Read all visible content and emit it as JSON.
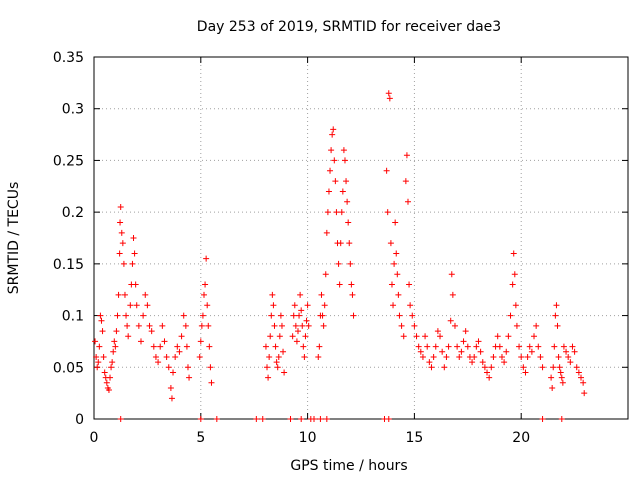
{
  "chart_data": {
    "type": "scatter",
    "title": "Day 253 of 2019, SRMTID for receiver dae3",
    "xlabel": "GPS time / hours",
    "ylabel": "SRMTID / TECUs",
    "xlim": [
      0,
      25
    ],
    "ylim": [
      0,
      0.35
    ],
    "x_ticks": [
      0,
      5,
      10,
      15,
      20
    ],
    "y_ticks": [
      0,
      0.05,
      0.1,
      0.15,
      0.2,
      0.25,
      0.3,
      0.35
    ],
    "y_tick_labels": [
      "0",
      "0.05",
      "0.1",
      "0.15",
      "0.2",
      "0.25",
      "0.3",
      "0.35"
    ],
    "grid": true,
    "marker": "+",
    "color": "#ff0000",
    "series": [
      {
        "name": "SRMTID",
        "points": [
          [
            0.05,
            0.075
          ],
          [
            0.1,
            0.06
          ],
          [
            0.15,
            0.05
          ],
          [
            0.2,
            0.055
          ],
          [
            0.25,
            0.07
          ],
          [
            0.3,
            0.1
          ],
          [
            0.35,
            0.095
          ],
          [
            0.4,
            0.085
          ],
          [
            0.45,
            0.06
          ],
          [
            0.5,
            0.045
          ],
          [
            0.55,
            0.04
          ],
          [
            0.6,
            0.035
          ],
          [
            0.65,
            0.03
          ],
          [
            0.7,
            0.028
          ],
          [
            0.75,
            0.04
          ],
          [
            0.8,
            0.05
          ],
          [
            0.85,
            0.055
          ],
          [
            0.9,
            0.065
          ],
          [
            0.95,
            0.075
          ],
          [
            1.0,
            0.07
          ],
          [
            1.05,
            0.085
          ],
          [
            1.1,
            0.1
          ],
          [
            1.15,
            0.12
          ],
          [
            1.2,
            0.16
          ],
          [
            1.22,
            0.19
          ],
          [
            1.25,
            0.205
          ],
          [
            1.3,
            0.18
          ],
          [
            1.35,
            0.17
          ],
          [
            1.4,
            0.15
          ],
          [
            1.45,
            0.12
          ],
          [
            1.5,
            0.1
          ],
          [
            1.55,
            0.09
          ],
          [
            1.6,
            0.08
          ],
          [
            1.7,
            0.11
          ],
          [
            1.75,
            0.13
          ],
          [
            1.8,
            0.15
          ],
          [
            1.85,
            0.175
          ],
          [
            1.9,
            0.16
          ],
          [
            1.95,
            0.13
          ],
          [
            2.0,
            0.11
          ],
          [
            2.1,
            0.09
          ],
          [
            2.2,
            0.075
          ],
          [
            2.3,
            0.1
          ],
          [
            2.4,
            0.12
          ],
          [
            2.5,
            0.11
          ],
          [
            2.6,
            0.09
          ],
          [
            2.7,
            0.085
          ],
          [
            2.8,
            0.07
          ],
          [
            2.9,
            0.06
          ],
          [
            3.0,
            0.055
          ],
          [
            3.1,
            0.07
          ],
          [
            3.2,
            0.09
          ],
          [
            3.3,
            0.075
          ],
          [
            3.4,
            0.06
          ],
          [
            3.5,
            0.05
          ],
          [
            3.6,
            0.03
          ],
          [
            3.65,
            0.02
          ],
          [
            3.7,
            0.045
          ],
          [
            3.8,
            0.06
          ],
          [
            3.9,
            0.07
          ],
          [
            4.0,
            0.065
          ],
          [
            4.1,
            0.08
          ],
          [
            4.2,
            0.1
          ],
          [
            4.3,
            0.09
          ],
          [
            4.35,
            0.07
          ],
          [
            4.4,
            0.05
          ],
          [
            4.45,
            0.04
          ],
          [
            4.95,
            0.06
          ],
          [
            5.0,
            0.075
          ],
          [
            5.05,
            0.09
          ],
          [
            5.1,
            0.1
          ],
          [
            5.15,
            0.12
          ],
          [
            5.2,
            0.13
          ],
          [
            5.25,
            0.155
          ],
          [
            5.3,
            0.11
          ],
          [
            5.35,
            0.09
          ],
          [
            5.4,
            0.07
          ],
          [
            5.45,
            0.05
          ],
          [
            5.5,
            0.035
          ],
          [
            8.05,
            0.07
          ],
          [
            8.1,
            0.05
          ],
          [
            8.15,
            0.04
          ],
          [
            8.2,
            0.06
          ],
          [
            8.25,
            0.08
          ],
          [
            8.3,
            0.1
          ],
          [
            8.35,
            0.12
          ],
          [
            8.4,
            0.11
          ],
          [
            8.45,
            0.09
          ],
          [
            8.5,
            0.07
          ],
          [
            8.55,
            0.055
          ],
          [
            8.6,
            0.05
          ],
          [
            8.65,
            0.06
          ],
          [
            8.7,
            0.08
          ],
          [
            8.75,
            0.1
          ],
          [
            8.8,
            0.09
          ],
          [
            8.85,
            0.065
          ],
          [
            8.9,
            0.045
          ],
          [
            9.3,
            0.08
          ],
          [
            9.35,
            0.1
          ],
          [
            9.4,
            0.11
          ],
          [
            9.45,
            0.09
          ],
          [
            9.5,
            0.075
          ],
          [
            9.55,
            0.085
          ],
          [
            9.6,
            0.1
          ],
          [
            9.65,
            0.12
          ],
          [
            9.7,
            0.105
          ],
          [
            9.75,
            0.09
          ],
          [
            9.8,
            0.07
          ],
          [
            9.85,
            0.06
          ],
          [
            9.9,
            0.08
          ],
          [
            9.95,
            0.095
          ],
          [
            10.0,
            0.11
          ],
          [
            10.05,
            0.09
          ],
          [
            10.5,
            0.06
          ],
          [
            10.55,
            0.07
          ],
          [
            10.6,
            0.1
          ],
          [
            10.65,
            0.12
          ],
          [
            10.7,
            0.1
          ],
          [
            10.75,
            0.09
          ],
          [
            10.8,
            0.11
          ],
          [
            10.85,
            0.14
          ],
          [
            10.9,
            0.18
          ],
          [
            10.95,
            0.2
          ],
          [
            11.0,
            0.22
          ],
          [
            11.05,
            0.24
          ],
          [
            11.1,
            0.26
          ],
          [
            11.15,
            0.275
          ],
          [
            11.2,
            0.28
          ],
          [
            11.25,
            0.25
          ],
          [
            11.3,
            0.23
          ],
          [
            11.35,
            0.2
          ],
          [
            11.4,
            0.17
          ],
          [
            11.45,
            0.15
          ],
          [
            11.5,
            0.13
          ],
          [
            11.55,
            0.17
          ],
          [
            11.6,
            0.2
          ],
          [
            11.65,
            0.22
          ],
          [
            11.7,
            0.26
          ],
          [
            11.75,
            0.25
          ],
          [
            11.8,
            0.23
          ],
          [
            11.85,
            0.21
          ],
          [
            11.9,
            0.19
          ],
          [
            11.95,
            0.17
          ],
          [
            12.0,
            0.15
          ],
          [
            12.05,
            0.13
          ],
          [
            12.1,
            0.12
          ],
          [
            12.15,
            0.1
          ],
          [
            13.7,
            0.24
          ],
          [
            13.75,
            0.2
          ],
          [
            13.8,
            0.315
          ],
          [
            13.85,
            0.31
          ],
          [
            13.9,
            0.17
          ],
          [
            13.95,
            0.13
          ],
          [
            14.0,
            0.11
          ],
          [
            14.05,
            0.15
          ],
          [
            14.1,
            0.19
          ],
          [
            14.15,
            0.16
          ],
          [
            14.2,
            0.14
          ],
          [
            14.25,
            0.12
          ],
          [
            14.3,
            0.1
          ],
          [
            14.4,
            0.09
          ],
          [
            14.5,
            0.08
          ],
          [
            14.6,
            0.23
          ],
          [
            14.65,
            0.255
          ],
          [
            14.7,
            0.21
          ],
          [
            14.75,
            0.13
          ],
          [
            14.8,
            0.11
          ],
          [
            14.9,
            0.1
          ],
          [
            15.0,
            0.09
          ],
          [
            15.1,
            0.08
          ],
          [
            15.2,
            0.07
          ],
          [
            15.3,
            0.065
          ],
          [
            15.4,
            0.06
          ],
          [
            15.5,
            0.08
          ],
          [
            15.6,
            0.07
          ],
          [
            15.7,
            0.055
          ],
          [
            15.8,
            0.05
          ],
          [
            15.9,
            0.06
          ],
          [
            16.0,
            0.07
          ],
          [
            16.1,
            0.085
          ],
          [
            16.2,
            0.08
          ],
          [
            16.3,
            0.065
          ],
          [
            16.4,
            0.05
          ],
          [
            16.5,
            0.06
          ],
          [
            16.6,
            0.07
          ],
          [
            16.7,
            0.095
          ],
          [
            16.75,
            0.14
          ],
          [
            16.8,
            0.12
          ],
          [
            16.9,
            0.09
          ],
          [
            17.0,
            0.07
          ],
          [
            17.1,
            0.06
          ],
          [
            17.2,
            0.065
          ],
          [
            17.3,
            0.075
          ],
          [
            17.4,
            0.085
          ],
          [
            17.5,
            0.07
          ],
          [
            17.6,
            0.06
          ],
          [
            17.7,
            0.055
          ],
          [
            17.8,
            0.06
          ],
          [
            17.9,
            0.07
          ],
          [
            18.0,
            0.075
          ],
          [
            18.1,
            0.065
          ],
          [
            18.2,
            0.055
          ],
          [
            18.3,
            0.05
          ],
          [
            18.4,
            0.045
          ],
          [
            18.5,
            0.04
          ],
          [
            18.6,
            0.05
          ],
          [
            18.7,
            0.06
          ],
          [
            18.8,
            0.07
          ],
          [
            18.9,
            0.08
          ],
          [
            19.0,
            0.07
          ],
          [
            19.1,
            0.06
          ],
          [
            19.2,
            0.055
          ],
          [
            19.3,
            0.065
          ],
          [
            19.4,
            0.08
          ],
          [
            19.5,
            0.1
          ],
          [
            19.6,
            0.13
          ],
          [
            19.65,
            0.16
          ],
          [
            19.7,
            0.14
          ],
          [
            19.75,
            0.11
          ],
          [
            19.8,
            0.09
          ],
          [
            19.9,
            0.07
          ],
          [
            20.0,
            0.06
          ],
          [
            20.1,
            0.05
          ],
          [
            20.2,
            0.045
          ],
          [
            20.3,
            0.06
          ],
          [
            20.4,
            0.07
          ],
          [
            20.5,
            0.065
          ],
          [
            20.6,
            0.08
          ],
          [
            20.7,
            0.09
          ],
          [
            20.8,
            0.07
          ],
          [
            20.9,
            0.06
          ],
          [
            21.0,
            0.05
          ],
          [
            21.4,
            0.04
          ],
          [
            21.45,
            0.03
          ],
          [
            21.5,
            0.05
          ],
          [
            21.55,
            0.07
          ],
          [
            21.6,
            0.1
          ],
          [
            21.65,
            0.11
          ],
          [
            21.7,
            0.09
          ],
          [
            21.75,
            0.06
          ],
          [
            21.8,
            0.05
          ],
          [
            21.85,
            0.045
          ],
          [
            21.9,
            0.04
          ],
          [
            21.95,
            0.035
          ],
          [
            22.0,
            0.07
          ],
          [
            22.1,
            0.065
          ],
          [
            22.2,
            0.06
          ],
          [
            22.3,
            0.055
          ],
          [
            22.4,
            0.07
          ],
          [
            22.5,
            0.065
          ],
          [
            22.6,
            0.05
          ],
          [
            22.7,
            0.045
          ],
          [
            22.8,
            0.04
          ],
          [
            22.9,
            0.035
          ],
          [
            22.95,
            0.025
          ],
          [
            1.25,
            0.0
          ],
          [
            5.0,
            0.0
          ],
          [
            5.75,
            0.0
          ],
          [
            7.6,
            0.0
          ],
          [
            7.9,
            0.0
          ],
          [
            9.2,
            0.0
          ],
          [
            9.7,
            0.0
          ],
          [
            10.15,
            0.0
          ],
          [
            10.3,
            0.0
          ],
          [
            10.6,
            0.0
          ],
          [
            10.9,
            0.0
          ],
          [
            13.6,
            0.0
          ],
          [
            13.8,
            0.0
          ],
          [
            21.0,
            0.0
          ],
          [
            21.9,
            0.0
          ]
        ]
      }
    ]
  }
}
